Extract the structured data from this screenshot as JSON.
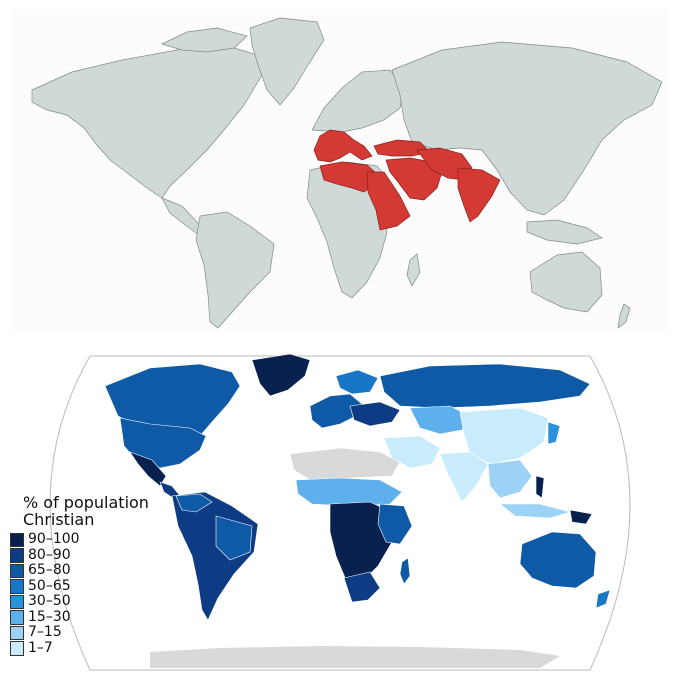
{
  "colors": {
    "top_ocean": "#fcfcfc",
    "top_land": "#cfd9d8",
    "top_border": "#808a8a",
    "top_highlight": "#d43a34",
    "bottom_ocean": "#ffffff",
    "bottom_no_data": "#d9d9d9"
  },
  "legend": {
    "title_line1": "% of population",
    "title_line2": "Christian",
    "items": [
      {
        "label": "90–100",
        "color": "#08214f"
      },
      {
        "label": "80–90",
        "color": "#0d3b84"
      },
      {
        "label": "65–80",
        "color": "#0f5aa6"
      },
      {
        "label": "50–65",
        "color": "#1876c6"
      },
      {
        "label": "30–50",
        "color": "#2a92dc"
      },
      {
        "label": "15–30",
        "color": "#5eb0ec"
      },
      {
        "label": "7–15",
        "color": "#9cd2f6"
      },
      {
        "label": "1–7",
        "color": "#c8ecfc"
      }
    ]
  }
}
